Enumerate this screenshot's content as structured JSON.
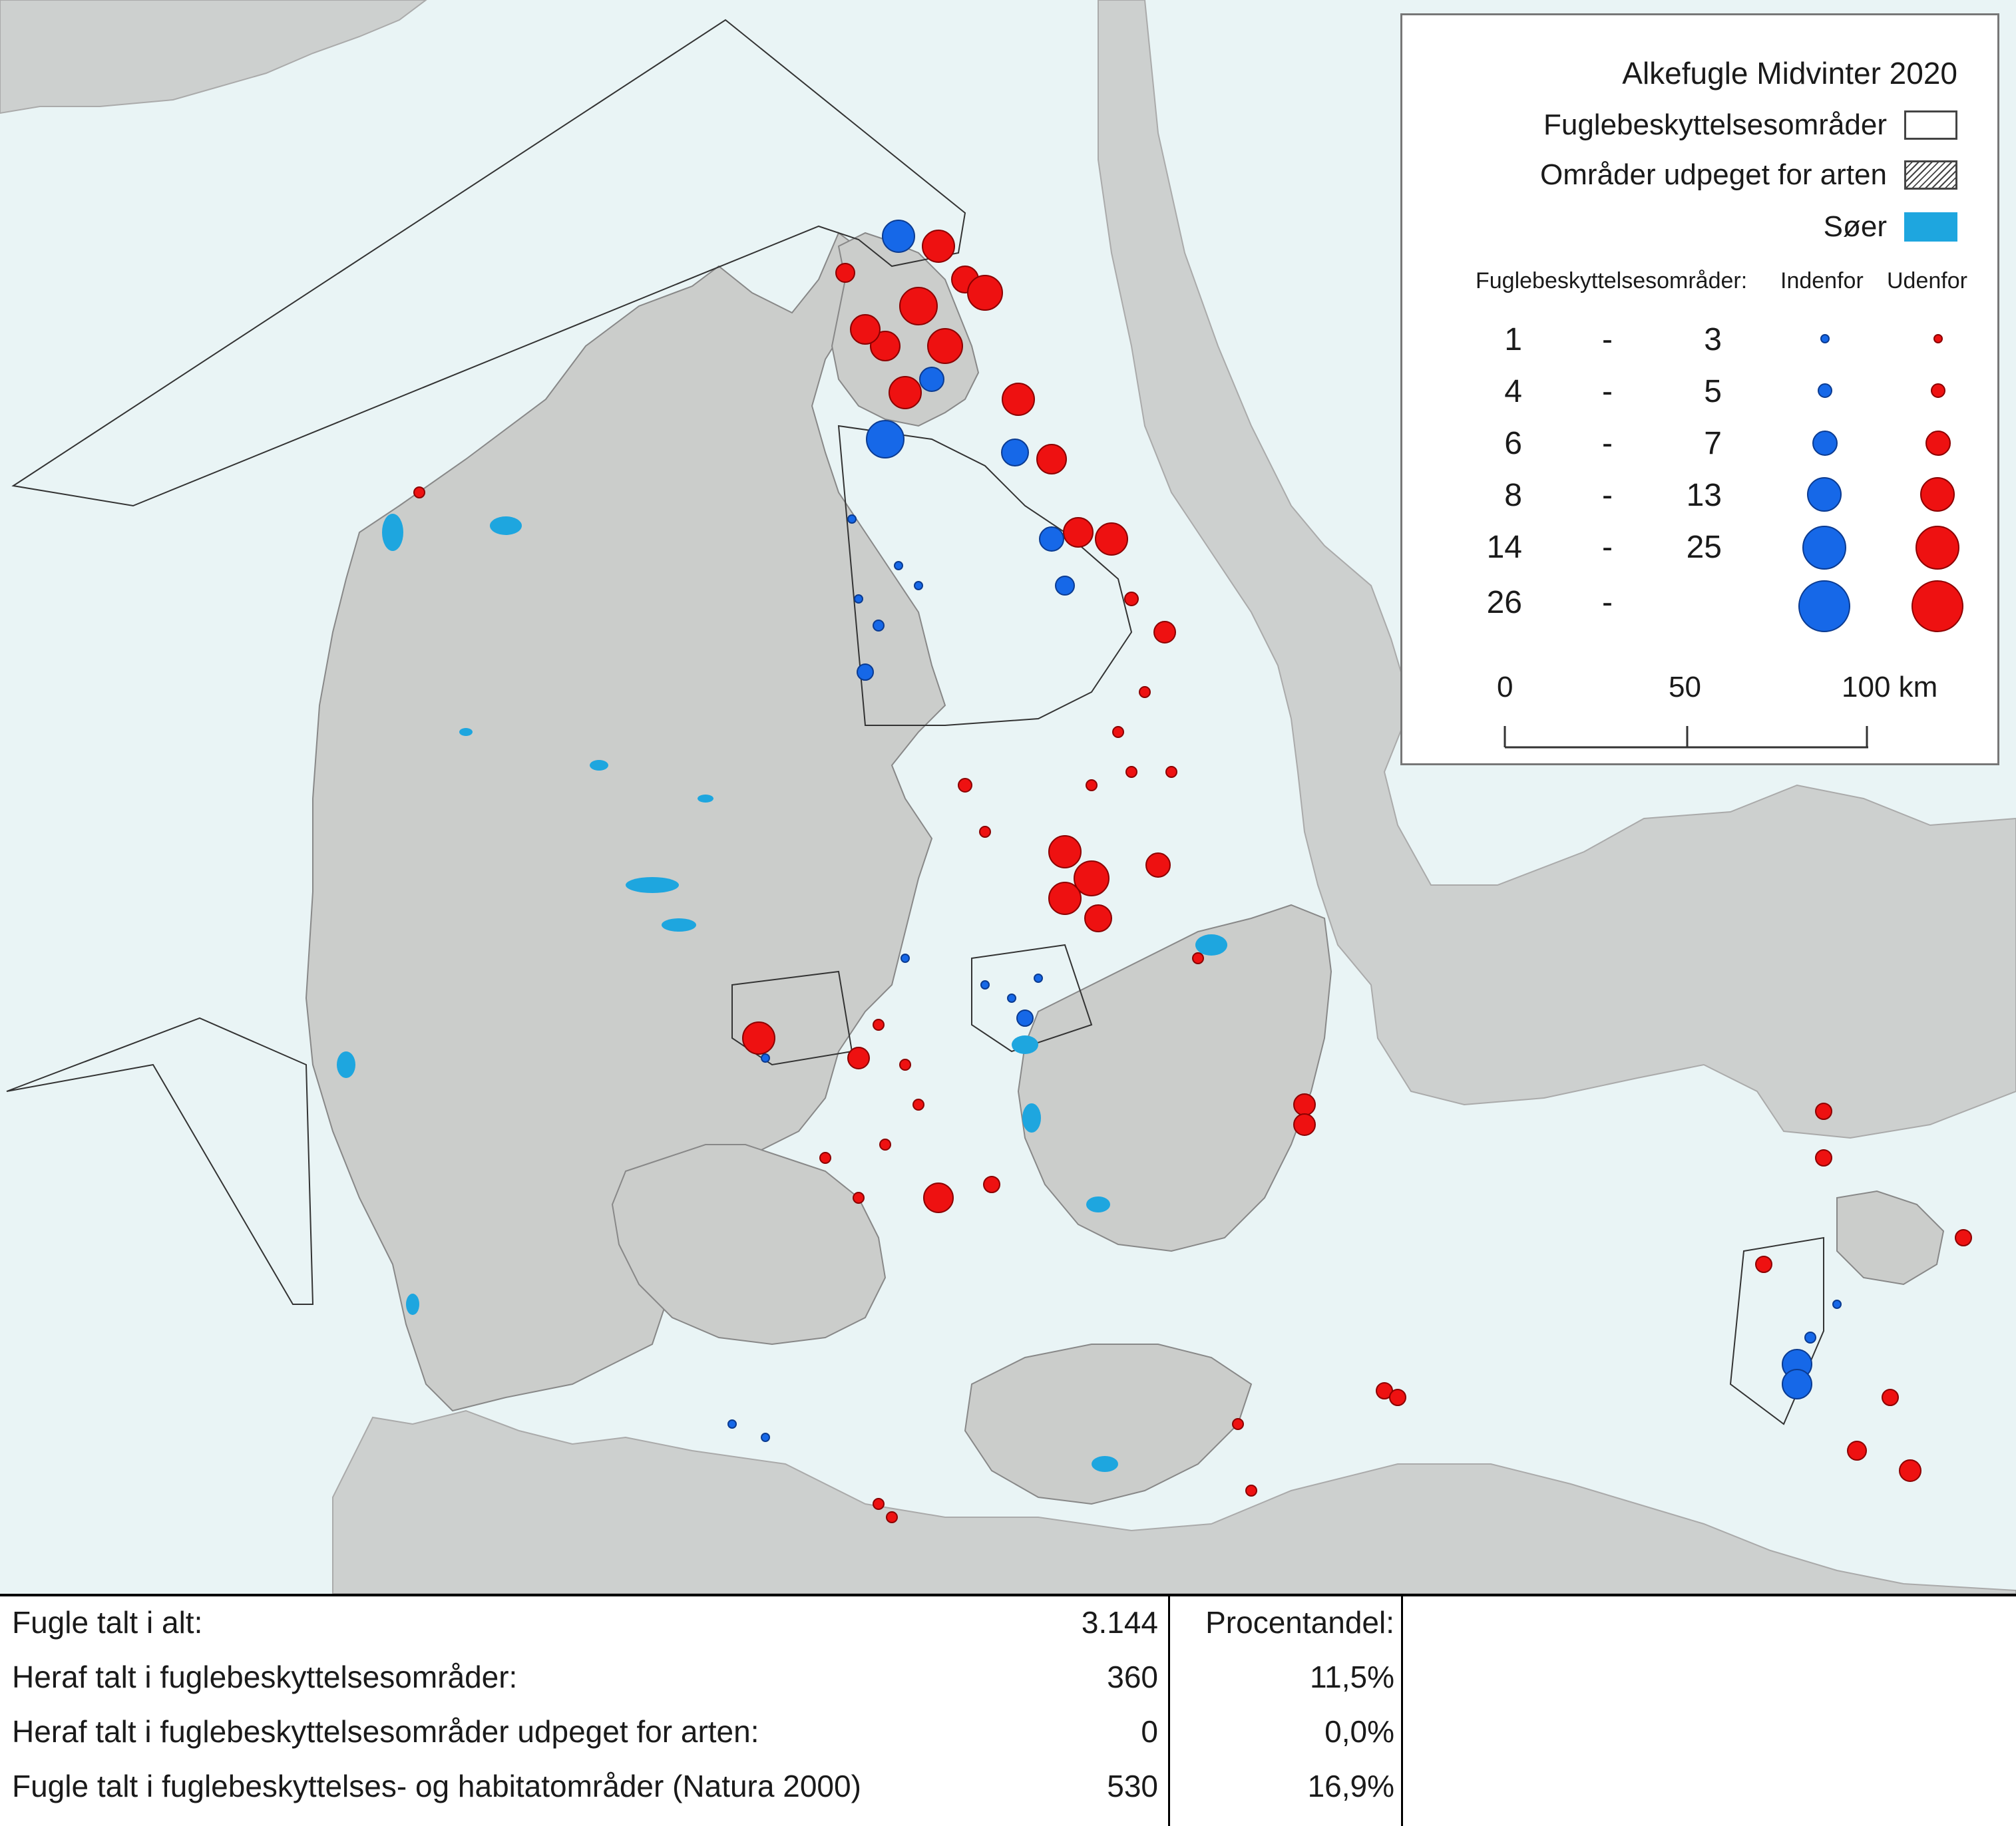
{
  "legend": {
    "title": "Alkefugle Midvinter 2020",
    "items": [
      {
        "label": "Fuglebeskyttelsesområder",
        "swatch": "white"
      },
      {
        "label": "Områder udpeget for arten",
        "swatch": "hatched"
      },
      {
        "label": "Søer",
        "swatch": "lake"
      }
    ],
    "subheader": {
      "label": "Fuglebeskyttelsesområder:",
      "inside": "Indenfor",
      "outside": "Udenfor"
    },
    "size_classes": [
      {
        "from": "1",
        "dash": "-",
        "to": "3"
      },
      {
        "from": "4",
        "dash": "-",
        "to": "5"
      },
      {
        "from": "6",
        "dash": "-",
        "to": "7"
      },
      {
        "from": "8",
        "dash": "-",
        "to": "13"
      },
      {
        "from": "14",
        "dash": "-",
        "to": "25"
      },
      {
        "from": "26",
        "dash": "-",
        "to": ""
      }
    ],
    "scale_bar": {
      "labels": [
        "0",
        "50",
        "100 km"
      ]
    }
  },
  "colors": {
    "sea": "#e9f4f5",
    "land": "#cbcdcb",
    "outer_land": "#cdd0cf",
    "lake": "#1ea6df",
    "inside_dot": "#1668e8",
    "outside_dot": "#ee1111"
  },
  "stats": {
    "rows": [
      {
        "label": "Fugle talt i alt:",
        "value": "3.144",
        "pct": "Procentandel:"
      },
      {
        "label": "Heraf talt i fuglebeskyttelsesområder:",
        "value": "360",
        "pct": "11,5%"
      },
      {
        "label": "Heraf talt i fuglebeskyttelsesområder udpeget for arten:",
        "value": "0",
        "pct": "0,0%"
      },
      {
        "label": "Fugle talt i fuglebeskyttelses- og habitatområder (Natura 2000)",
        "value": "530",
        "pct": "16,9%"
      }
    ]
  }
}
